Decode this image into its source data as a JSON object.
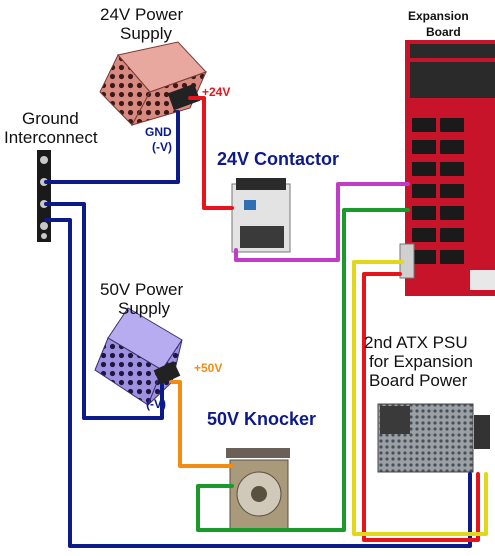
{
  "labels": {
    "psu24_title": "24V Power",
    "psu24_title2": "Supply",
    "plus24": "+24V",
    "gnd": "GND",
    "gnd_neg": "(-V)",
    "ground_title": "Ground",
    "ground_title2": "Interconnect",
    "contactor": "24V Contactor",
    "expansion": "Expansion",
    "expansion2": "Board",
    "psu50_title": "50V Power",
    "psu50_title2": "Supply",
    "plus50": "+50V",
    "neg50": "(-V)",
    "knocker": "50V Knocker",
    "atx1": "2nd ATX PSU",
    "atx2": "for Expansion",
    "atx3": "Board Power"
  },
  "colors": {
    "wire_ground": "#0d1a8a",
    "wire_24v": "#e8141b",
    "wire_contactor": "#c23cc8",
    "wire_knocker_ret": "#1a9a2a",
    "wire_50v": "#f28c14",
    "wire_yellow": "#e3d71a",
    "label_plus24": "#e8141b",
    "label_plus50": "#f28c14",
    "label_blue": "#0d1a8a",
    "psu24_body": "#d98a80",
    "psu50_body": "#9f90e0",
    "board_red": "#c8142a"
  }
}
